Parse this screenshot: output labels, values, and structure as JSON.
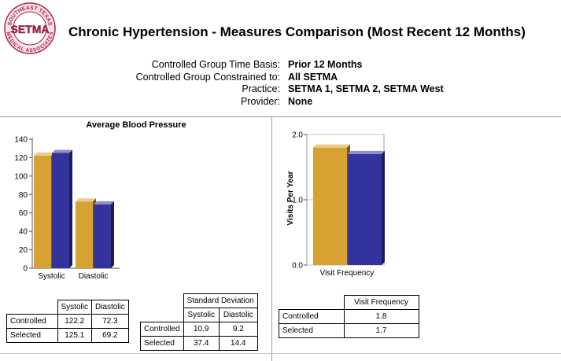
{
  "logo": {
    "text_top": "SOUTHEAST TEXAS",
    "text_center": "SETMA",
    "text_bottom": "MEDICAL ASSOCIATES"
  },
  "header": {
    "title": "Chronic Hypertension -  Measures Comparison (Most Recent 12 Months)"
  },
  "meta": [
    {
      "label": "Controlled Group Time Basis:",
      "value": "Prior 12 Months"
    },
    {
      "label": "Controlled Group Constrained to:",
      "value": "All SETMA"
    },
    {
      "label": "Practice:",
      "value": "SETMA 1, SETMA 2, SETMA West"
    },
    {
      "label": "Provider:",
      "value": "None"
    }
  ],
  "colors": {
    "controlled": "#d7a232",
    "selected": "#33339e",
    "axis": "#555555"
  },
  "chart_data": [
    {
      "type": "bar",
      "title": "Average Blood Pressure",
      "categories": [
        "Systolic",
        "Diastolic"
      ],
      "series": [
        {
          "name": "Controlled",
          "values": [
            122.2,
            72.3
          ]
        },
        {
          "name": "Selected",
          "values": [
            125.1,
            69.2
          ]
        }
      ],
      "ylim": [
        0,
        140
      ],
      "yticks": [
        "0",
        "20",
        "40",
        "60",
        "80",
        "100",
        "120",
        "140"
      ],
      "grid": false
    },
    {
      "type": "bar",
      "title": "",
      "ylabel": "Visits Per Year",
      "categories": [
        "Visit Frequency"
      ],
      "series": [
        {
          "name": "Controlled",
          "values": [
            1.8
          ]
        },
        {
          "name": "Selected",
          "values": [
            1.7
          ]
        }
      ],
      "ylim": [
        0,
        2.0
      ],
      "yticks": [
        "0.0",
        "1.0",
        "2.0"
      ],
      "grid": true
    }
  ],
  "tables": {
    "bp_avg": {
      "headers": [
        "Systolic",
        "Diastolic"
      ],
      "rows": [
        {
          "label": "Controlled",
          "values": [
            "122.2",
            "72.3"
          ]
        },
        {
          "label": "Selected",
          "values": [
            "125.1",
            "69.2"
          ]
        }
      ]
    },
    "bp_sd": {
      "caption": "Standard Deviation",
      "headers": [
        "Systolic",
        "Diastolic"
      ],
      "rows": [
        {
          "label": "Controlled",
          "values": [
            "10.9",
            "9.2"
          ]
        },
        {
          "label": "Selected",
          "values": [
            "37.4",
            "14.4"
          ]
        }
      ]
    },
    "visit": {
      "headers": [
        "Visit Frequency"
      ],
      "rows": [
        {
          "label": "Controlled",
          "values": [
            "1.8"
          ]
        },
        {
          "label": "Selected",
          "values": [
            "1.7"
          ]
        }
      ]
    }
  }
}
